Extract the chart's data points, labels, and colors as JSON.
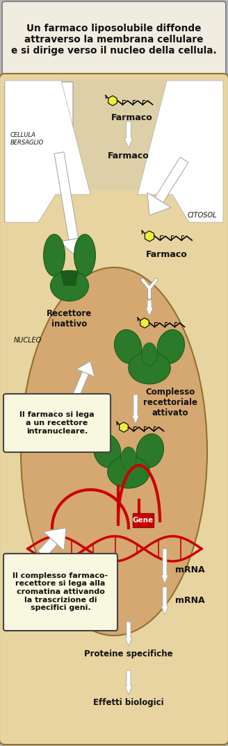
{
  "fig_width": 3.28,
  "fig_height": 10.74,
  "dpi": 100,
  "bg_outer": "#b8b8b8",
  "bg_cell": "#e8d4a0",
  "bg_nucleus": "#d4a870",
  "bg_inner_top": "#ddd0a8",
  "bg_textbox_top": "#f0ece0",
  "bg_callout": "#f8f8e0",
  "border_color": "#444444",
  "green_receptor": "#2a7a2a",
  "green_dark": "#1a5a1a",
  "yellow_drug": "#eeee40",
  "red_dna": "#cc0000",
  "white_color": "#ffffff",
  "text_dark": "#111111",
  "title_text": "Un farmaco liposolubile diffonde\nattraverso la membrana cellulare\ne si dirige verso il nucleo della cellula.",
  "callout1": "Il farmaco si lega\na un recettore\nintranucleare.",
  "callout2": "Il complesso farmaco-\nrecettore si lega alla\ncromatina attivando\nla trascrizione di\nspecifici geni."
}
